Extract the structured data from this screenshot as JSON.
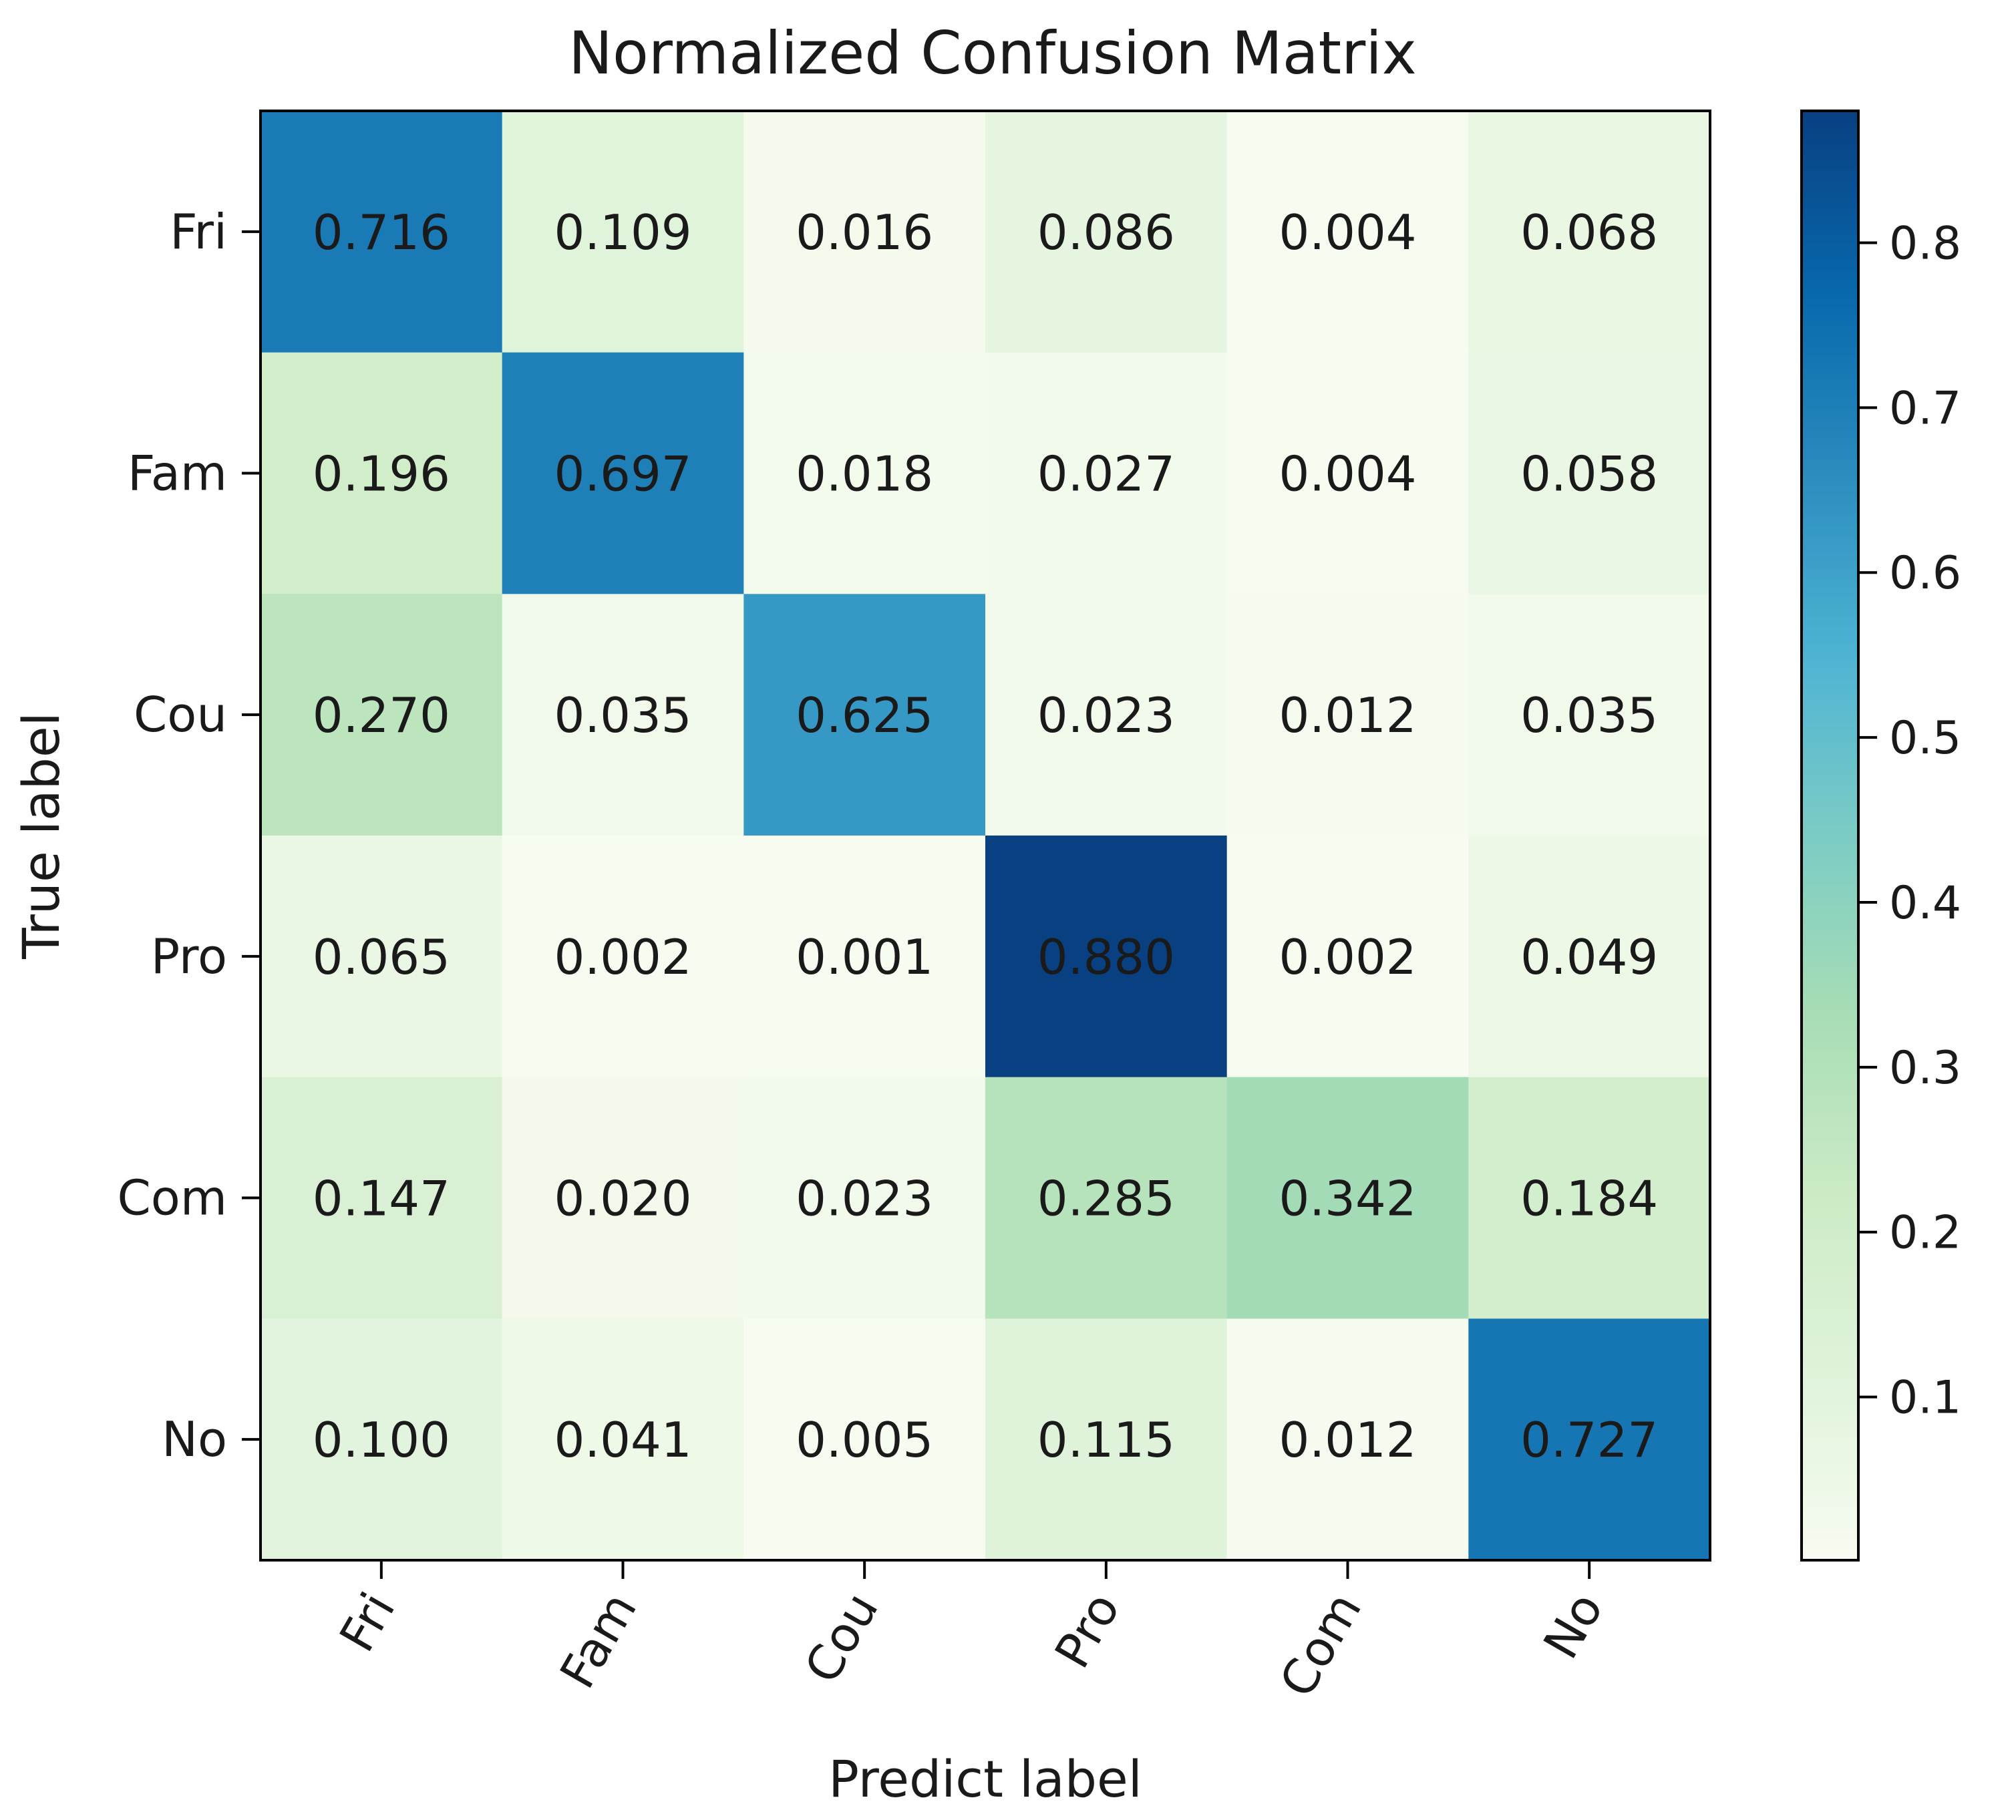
{
  "chart_data": {
    "type": "heatmap",
    "title": "Normalized Confusion Matrix",
    "xlabel": "Predict label",
    "ylabel": "True label",
    "x_categories": [
      "Fri",
      "Fam",
      "Cou",
      "Pro",
      "Com",
      "No"
    ],
    "y_categories": [
      "Fri",
      "Fam",
      "Cou",
      "Pro",
      "Com",
      "No"
    ],
    "values": [
      [
        0.716,
        0.109,
        0.016,
        0.086,
        0.004,
        0.068
      ],
      [
        0.196,
        0.697,
        0.018,
        0.027,
        0.004,
        0.058
      ],
      [
        0.27,
        0.035,
        0.625,
        0.023,
        0.012,
        0.035
      ],
      [
        0.065,
        0.002,
        0.001,
        0.88,
        0.002,
        0.049
      ],
      [
        0.147,
        0.02,
        0.023,
        0.285,
        0.342,
        0.184
      ],
      [
        0.1,
        0.041,
        0.005,
        0.115,
        0.012,
        0.727
      ]
    ],
    "value_labels": [
      [
        "0.716",
        "0.109",
        "0.016",
        "0.086",
        "0.004",
        "0.068"
      ],
      [
        "0.196",
        "0.697",
        "0.018",
        "0.027",
        "0.004",
        "0.058"
      ],
      [
        "0.270",
        "0.035",
        "0.625",
        "0.023",
        "0.012",
        "0.035"
      ],
      [
        "0.065",
        "0.002",
        "0.001",
        "0.880",
        "0.002",
        "0.049"
      ],
      [
        "0.147",
        "0.020",
        "0.023",
        "0.285",
        "0.342",
        "0.184"
      ],
      [
        "0.100",
        "0.041",
        "0.005",
        "0.115",
        "0.012",
        "0.727"
      ]
    ],
    "colorbar": {
      "colormap": "GnBu",
      "range": [
        0.001,
        0.88
      ],
      "ticks": [
        0.1,
        0.2,
        0.3,
        0.4,
        0.5,
        0.6,
        0.7,
        0.8
      ],
      "tick_labels": [
        "0.1",
        "0.2",
        "0.3",
        "0.4",
        "0.5",
        "0.6",
        "0.7",
        "0.8"
      ]
    },
    "colors": {
      "stops": [
        "#f7fcf0",
        "#e0f3db",
        "#ccebc5",
        "#a8ddb5",
        "#7bccc4",
        "#4eb3d3",
        "#2b8cbe",
        "#0868ac",
        "#084081"
      ],
      "axis": "#000000",
      "text": "#1a1a1a"
    }
  }
}
